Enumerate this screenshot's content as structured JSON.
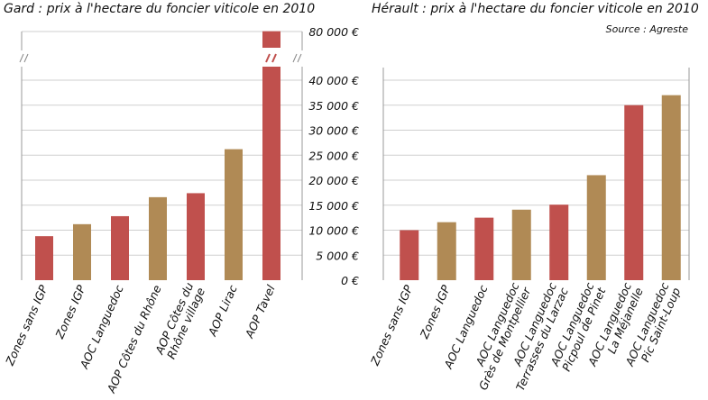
{
  "chart_data": [
    {
      "type": "bar",
      "title": "Gard : prix à l'hectare du foncier viticole en 2010",
      "categories": [
        "Zones sans IGP",
        "Zones IGP",
        "AOC Languedoc",
        "AOP Côtes du Rhône",
        "AOP Côtes du Rhône village",
        "AOP Lirac",
        "AOP Tavel"
      ],
      "category_lines": [
        [
          "Zones sans IGP"
        ],
        [
          "Zones IGP"
        ],
        [
          "AOC Languedoc"
        ],
        [
          "AOP Côtes du Rhône"
        ],
        [
          "AOP Côtes du",
          "Rhône village"
        ],
        [
          "AOP Lirac"
        ],
        [
          "AOP Tavel"
        ]
      ],
      "values": [
        8800,
        11200,
        12800,
        16600,
        17400,
        26200,
        83500
      ],
      "bar_colors": [
        "#c0504d",
        "#b08a55",
        "#c0504d",
        "#b08a55",
        "#c0504d",
        "#b08a55",
        "#c0504d"
      ],
      "axis_break": true,
      "ylim": [
        0,
        85000
      ],
      "grid": true
    },
    {
      "type": "bar",
      "title": "Hérault : prix à l'hectare du foncier viticole en 2010",
      "subtitle": "Source : Agreste",
      "categories": [
        "Zones sans IGP",
        "Zones IGP",
        "AOC Languedoc",
        "AOC Languedoc Grès de Montpellier",
        "AOC Languedoc Terrasses du Larzac",
        "AOC Languedoc Picpoul de Pinet",
        "AOC Languedoc La Méjanelle",
        "AOC Languedoc Pic Saint-Loup"
      ],
      "category_lines": [
        [
          "Zones sans IGP"
        ],
        [
          "Zones IGP"
        ],
        [
          "AOC Languedoc"
        ],
        [
          "AOC Languedoc",
          "Grès de Montpellier"
        ],
        [
          "AOC Languedoc",
          "Terrasses du Larzac"
        ],
        [
          "AOC Languedoc",
          "Picpoul de Pinet"
        ],
        [
          "AOC Languedoc",
          "La Méjanelle"
        ],
        [
          "AOC Languedoc",
          "Pic Saint-Loup"
        ]
      ],
      "values": [
        10000,
        11600,
        12500,
        14100,
        15100,
        21000,
        35000,
        37000
      ],
      "bar_colors": [
        "#c0504d",
        "#b08a55",
        "#c0504d",
        "#b08a55",
        "#c0504d",
        "#b08a55",
        "#c0504d",
        "#b08a55"
      ],
      "ylim": [
        0,
        40000
      ],
      "grid": true
    }
  ],
  "y_axis": {
    "tick_labels": [
      "0 €",
      "5 000 €",
      "10 000 €",
      "15 000 €",
      "20 000 €",
      "25 000 €",
      "30 000 €",
      "35 000 €",
      "40 000 €"
    ],
    "break_label": "80 000 €"
  }
}
